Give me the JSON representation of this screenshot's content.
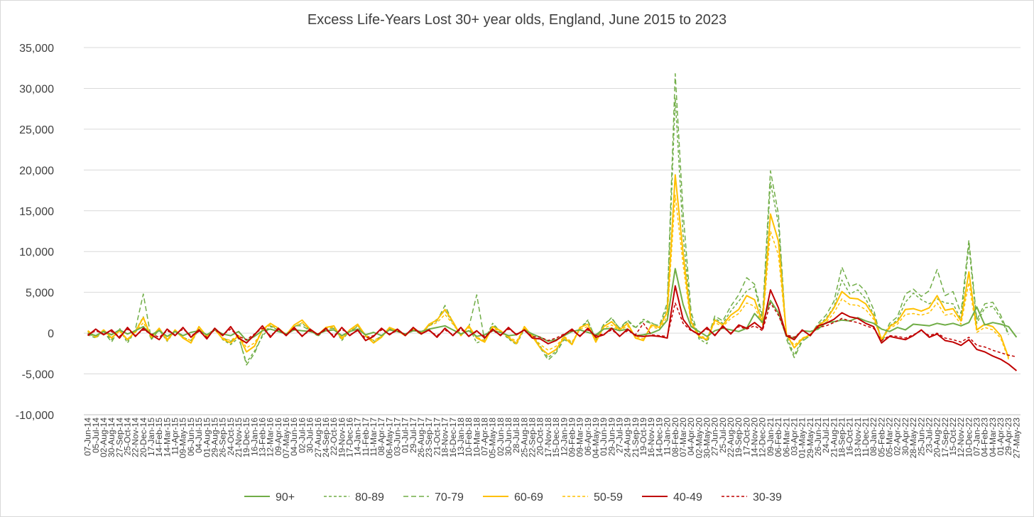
{
  "chart_data": {
    "type": "line",
    "title": "Excess Life-Years Lost 30+ year olds, England, June 2015 to 2023",
    "xlabel": "",
    "ylabel": "",
    "ylim": [
      -10000,
      35000
    ],
    "yticks": [
      -10000,
      -5000,
      0,
      5000,
      10000,
      15000,
      20000,
      25000,
      30000,
      35000
    ],
    "ytick_labels": [
      "-10,000",
      "-5,000",
      "0",
      "5,000",
      "10,000",
      "15,000",
      "20,000",
      "25,000",
      "30,000",
      "35,000"
    ],
    "grid": true,
    "legend": "bottom",
    "x_dates": [
      "07-Jun-14",
      "05-Jul-14",
      "02-Aug-14",
      "30-Aug-14",
      "27-Sep-14",
      "25-Oct-14",
      "22-Nov-14",
      "20-Dec-14",
      "17-Jan-15",
      "14-Feb-15",
      "14-Mar-15",
      "11-Apr-15",
      "09-May-15",
      "06-Jun-15",
      "04-Jul-15",
      "01-Aug-15",
      "29-Aug-15",
      "26-Sep-15",
      "24-Oct-15",
      "21-Nov-15",
      "19-Dec-15",
      "16-Jan-16",
      "13-Feb-16",
      "12-Mar-16",
      "09-Apr-16",
      "07-May-16",
      "04-Jun-16",
      "02-Jul-16",
      "30-Jul-16",
      "27-Aug-16",
      "24-Sep-16",
      "22-Oct-16",
      "19-Nov-16",
      "17-Dec-16",
      "14-Jan-17",
      "11-Feb-17",
      "11-Mar-17",
      "08-Apr-17",
      "06-May-17",
      "03-Jun-17",
      "01-Jul-17",
      "29-Jul-17",
      "26-Aug-17",
      "23-Sep-17",
      "21-Oct-17",
      "18-Nov-17",
      "16-Dec-17",
      "13-Jan-18",
      "10-Feb-18",
      "10-Mar-18",
      "07-Apr-18",
      "05-May-18",
      "02-Jun-18",
      "30-Jun-18",
      "28-Jul-18",
      "25-Aug-18",
      "22-Sep-18",
      "20-Oct-18",
      "17-Nov-18",
      "15-Dec-18",
      "12-Jan-19",
      "09-Feb-19",
      "09-Mar-19",
      "06-Apr-19",
      "04-May-19",
      "01-Jun-19",
      "29-Jun-19",
      "27-Jul-19",
      "24-Aug-19",
      "21-Sep-19",
      "19-Oct-19",
      "16-Nov-19",
      "14-Dec-19",
      "11-Jan-20",
      "08-Feb-20",
      "07-Mar-20",
      "04-Apr-20",
      "02-May-20",
      "30-May-20",
      "27-Jun-20",
      "25-Jul-20",
      "22-Aug-20",
      "19-Sep-20",
      "17-Oct-20",
      "14-Nov-20",
      "12-Dec-20",
      "09-Jan-21",
      "06-Feb-21",
      "06-Mar-21",
      "03-Apr-21",
      "01-May-21",
      "29-May-21",
      "26-Jun-21",
      "24-Jul-21",
      "21-Aug-21",
      "18-Sep-21",
      "16-Oct-21",
      "13-Nov-21",
      "11-Dec-21",
      "08-Jan-22",
      "05-Feb-22",
      "05-Mar-22",
      "02-Apr-22",
      "30-Apr-22",
      "28-May-22",
      "25-Jun-22",
      "23-Jul-22",
      "20-Aug-22",
      "17-Sep-22",
      "15-Oct-22",
      "12-Nov-22",
      "10-Dec-22",
      "07-Jan-23",
      "04-Feb-23",
      "04-Mar-23",
      "01-Apr-23",
      "29-Apr-23",
      "27-May-23"
    ],
    "series": [
      {
        "name": "90+",
        "color": "#70ad47",
        "dash": "solid",
        "width": 2,
        "values": [
          0,
          -300,
          200,
          -200,
          400,
          -100,
          300,
          800,
          -200,
          300,
          -400,
          200,
          -300,
          100,
          300,
          -200,
          400,
          -100,
          -300,
          200,
          -900,
          -400,
          300,
          500,
          200,
          -100,
          400,
          300,
          200,
          -100,
          300,
          400,
          -300,
          200,
          500,
          -200,
          100,
          -300,
          400,
          200,
          -100,
          300,
          200,
          500,
          700,
          900,
          400,
          -100,
          300,
          -400,
          -200,
          300,
          100,
          -300,
          -200,
          400,
          -100,
          -500,
          -1000,
          -800,
          -300,
          200,
          400,
          100,
          -200,
          500,
          600,
          300,
          500,
          -300,
          -200,
          0,
          400,
          1600,
          7900,
          3500,
          800,
          200,
          -400,
          300,
          600,
          400,
          200,
          600,
          2400,
          1300,
          4000,
          2500,
          -400,
          -600,
          300,
          200,
          500,
          1300,
          1400,
          1600,
          1500,
          1900,
          1500,
          1200,
          500,
          200,
          700,
          400,
          1100,
          1000,
          900,
          1200,
          1000,
          1200,
          900,
          1300,
          3200,
          1000,
          1300,
          1100,
          800,
          -500
        ]
      },
      {
        "name": "80-89",
        "color": "#70ad47",
        "dash": "4 3",
        "width": 1.5,
        "values": [
          -200,
          -600,
          200,
          -800,
          500,
          -1200,
          300,
          2000,
          -800,
          400,
          -1000,
          300,
          -600,
          -1200,
          500,
          -300,
          600,
          -800,
          -1400,
          -600,
          -3600,
          -2200,
          -400,
          800,
          400,
          -200,
          800,
          1200,
          400,
          -400,
          600,
          800,
          -900,
          300,
          900,
          -400,
          -1100,
          -500,
          600,
          400,
          -300,
          500,
          -200,
          1000,
          1700,
          2800,
          1200,
          -300,
          800,
          -1200,
          -800,
          1200,
          200,
          -700,
          -1400,
          500,
          -300,
          -1600,
          -3000,
          -2200,
          -600,
          -1200,
          600,
          1600,
          -900,
          1000,
          1900,
          500,
          1500,
          600,
          1700,
          1300,
          600,
          3200,
          28800,
          12000,
          2000,
          -700,
          -1300,
          1800,
          1200,
          2700,
          3900,
          5200,
          5700,
          1500,
          18500,
          13400,
          -300,
          -2700,
          -800,
          -400,
          1000,
          1800,
          3200,
          6500,
          4800,
          5300,
          4200,
          2300,
          -1200,
          900,
          1600,
          3800,
          4900,
          4100,
          3600,
          4200,
          3700,
          3600,
          1700,
          10700,
          1200,
          3100,
          3300,
          1800,
          -200
        ]
      },
      {
        "name": "70-79",
        "color": "#70ad47",
        "dash": "7 4",
        "width": 1.5,
        "values": [
          -100,
          -400,
          200,
          -1100,
          600,
          -1000,
          500,
          4800,
          -700,
          400,
          -800,
          200,
          -500,
          -900,
          400,
          -300,
          500,
          -600,
          -1000,
          -400,
          -3900,
          -2500,
          -200,
          900,
          500,
          -100,
          900,
          900,
          300,
          -300,
          500,
          600,
          -700,
          200,
          800,
          -300,
          -900,
          -400,
          500,
          300,
          -200,
          400,
          -100,
          900,
          1500,
          3400,
          1300,
          -200,
          700,
          4700,
          -1000,
          1000,
          300,
          -600,
          -1200,
          600,
          -200,
          -1800,
          -3300,
          -2400,
          -800,
          -1300,
          500,
          1500,
          -700,
          1100,
          1800,
          600,
          1600,
          700,
          1500,
          1200,
          900,
          3700,
          31800,
          14800,
          2600,
          -500,
          -900,
          2100,
          1500,
          3300,
          4700,
          6800,
          6000,
          2100,
          19900,
          14600,
          -700,
          -3000,
          -1000,
          -300,
          1200,
          2200,
          3900,
          8100,
          5700,
          6100,
          5100,
          2900,
          -1000,
          1200,
          2000,
          4800,
          5400,
          4500,
          5200,
          7800,
          4600,
          5100,
          2400,
          11400,
          1600,
          3600,
          3800,
          2200,
          -100
        ]
      },
      {
        "name": "60-69",
        "color": "#ffc000",
        "dash": "solid",
        "width": 2,
        "values": [
          300,
          -500,
          400,
          -600,
          300,
          -800,
          200,
          1900,
          -500,
          600,
          -900,
          400,
          -600,
          -1200,
          800,
          -400,
          500,
          -700,
          -1200,
          -300,
          -2300,
          -1600,
          400,
          1200,
          600,
          -200,
          1000,
          1600,
          500,
          -200,
          700,
          900,
          -700,
          400,
          1100,
          -300,
          -1200,
          -500,
          700,
          300,
          -300,
          600,
          -100,
          1100,
          1600,
          2900,
          1400,
          -300,
          900,
          -600,
          -1100,
          800,
          300,
          -500,
          -1300,
          800,
          -400,
          -1800,
          -2600,
          -2000,
          -500,
          -1400,
          700,
          1100,
          -1100,
          800,
          1400,
          400,
          1200,
          -600,
          -900,
          1000,
          700,
          2600,
          19400,
          9800,
          1400,
          -400,
          -800,
          1600,
          1000,
          2200,
          2900,
          4600,
          4100,
          1300,
          14600,
          11300,
          -100,
          -1800,
          -700,
          -200,
          900,
          1600,
          3100,
          5100,
          4300,
          4200,
          3600,
          2100,
          -800,
          800,
          1400,
          2900,
          3000,
          2700,
          3100,
          4600,
          2800,
          3000,
          1500,
          7500,
          400,
          1100,
          800,
          -300,
          -3000
        ]
      },
      {
        "name": "50-59",
        "color": "#ffc000",
        "dash": "4 3",
        "width": 1.5,
        "values": [
          200,
          -400,
          300,
          -500,
          200,
          -700,
          100,
          1300,
          -400,
          500,
          -700,
          300,
          -500,
          -900,
          600,
          -300,
          400,
          -600,
          -900,
          -200,
          -1800,
          -1200,
          300,
          1000,
          500,
          -100,
          800,
          1300,
          400,
          -100,
          600,
          700,
          -500,
          300,
          900,
          -200,
          -900,
          -400,
          500,
          200,
          -200,
          500,
          0,
          900,
          1300,
          2300,
          1100,
          -200,
          700,
          -500,
          -900,
          600,
          200,
          -400,
          -1000,
          600,
          -300,
          -1400,
          -2100,
          -1600,
          -400,
          -1100,
          500,
          800,
          -800,
          600,
          1000,
          300,
          900,
          -400,
          -700,
          800,
          500,
          2000,
          16900,
          8400,
          1100,
          -300,
          -600,
          1300,
          800,
          1800,
          2400,
          3700,
          3300,
          1000,
          12500,
          9600,
          -200,
          -1500,
          -600,
          -200,
          700,
          1300,
          2500,
          4200,
          3500,
          3400,
          2900,
          1700,
          -700,
          600,
          1100,
          2300,
          2400,
          2200,
          2500,
          3700,
          2200,
          2400,
          1100,
          6200,
          100,
          700,
          400,
          -600,
          -3200
        ]
      },
      {
        "name": "40-49",
        "color": "#c00000",
        "dash": "solid",
        "width": 2,
        "values": [
          -300,
          500,
          -200,
          400,
          -600,
          700,
          -400,
          600,
          -200,
          -800,
          500,
          -300,
          700,
          -500,
          400,
          -700,
          600,
          -300,
          800,
          -600,
          -1200,
          -200,
          900,
          -500,
          600,
          -300,
          700,
          -400,
          500,
          -200,
          600,
          -500,
          700,
          -300,
          400,
          -900,
          -400,
          600,
          -200,
          500,
          -300,
          700,
          -100,
          400,
          -500,
          600,
          -300,
          700,
          -400,
          300,
          -600,
          500,
          -300,
          700,
          -200,
          400,
          -600,
          -700,
          -1300,
          -900,
          -200,
          500,
          -400,
          600,
          -500,
          -200,
          600,
          -400,
          500,
          -300,
          -400,
          -300,
          -400,
          -600,
          5800,
          1700,
          400,
          -200,
          700,
          -300,
          900,
          -100,
          1000,
          600,
          1300,
          500,
          5300,
          3100,
          -300,
          -800,
          400,
          -300,
          900,
          1200,
          1700,
          2500,
          2000,
          1800,
          1200,
          800,
          -1200,
          -400,
          -600,
          -800,
          -300,
          400,
          -500,
          -100,
          -900,
          -1100,
          -1500,
          -800,
          -2000,
          -2300,
          -2800,
          -3200,
          -3800,
          -4600
        ]
      },
      {
        "name": "30-39",
        "color": "#c00000",
        "dash": "4 3",
        "width": 1.5,
        "values": [
          -200,
          300,
          -100,
          200,
          -400,
          500,
          -300,
          400,
          -100,
          -500,
          300,
          -200,
          500,
          -300,
          200,
          -500,
          400,
          -200,
          500,
          -400,
          -800,
          -100,
          600,
          -300,
          400,
          -200,
          500,
          -300,
          300,
          -100,
          400,
          -300,
          500,
          -200,
          300,
          -600,
          -300,
          400,
          -100,
          300,
          -200,
          500,
          0,
          300,
          -300,
          400,
          -200,
          500,
          -300,
          200,
          -400,
          300,
          -200,
          500,
          -100,
          300,
          -400,
          -500,
          -900,
          -600,
          -100,
          300,
          -300,
          400,
          -300,
          -100,
          400,
          -300,
          300,
          -200,
          1200,
          -200,
          -300,
          -400,
          3700,
          1200,
          300,
          -100,
          500,
          -200,
          700,
          0,
          800,
          500,
          900,
          300,
          3700,
          2200,
          -200,
          -500,
          300,
          -200,
          700,
          900,
          1300,
          1800,
          1500,
          1300,
          900,
          600,
          -900,
          -300,
          -400,
          -600,
          -200,
          300,
          -300,
          0,
          -600,
          -800,
          -1100,
          -500,
          -1500,
          -1700,
          -2100,
          -2400,
          -2700,
          -2900
        ]
      }
    ]
  }
}
